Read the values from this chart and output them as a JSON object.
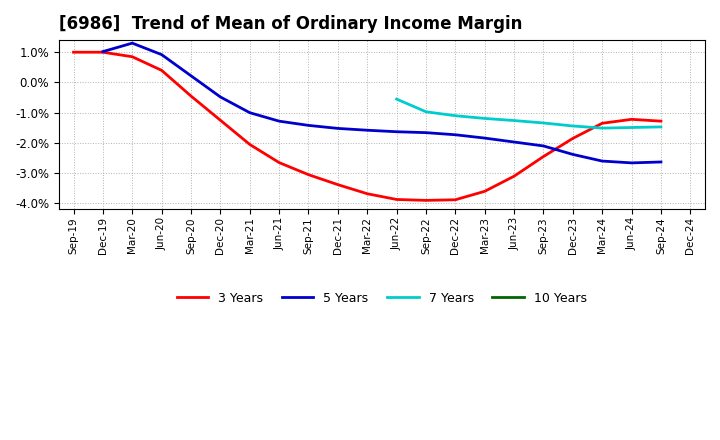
{
  "title": "[6986]  Trend of Mean of Ordinary Income Margin",
  "title_fontsize": 12,
  "background_color": "#ffffff",
  "ylim": [
    -0.042,
    0.014
  ],
  "yticks": [
    -0.04,
    -0.03,
    -0.02,
    -0.01,
    0.0,
    0.01
  ],
  "x_labels": [
    "Sep-19",
    "Dec-19",
    "Mar-20",
    "Jun-20",
    "Sep-20",
    "Dec-20",
    "Mar-21",
    "Jun-21",
    "Sep-21",
    "Dec-21",
    "Mar-22",
    "Jun-22",
    "Sep-22",
    "Dec-22",
    "Mar-23",
    "Jun-23",
    "Sep-23",
    "Dec-23",
    "Mar-24",
    "Jun-24",
    "Sep-24",
    "Dec-24"
  ],
  "series_3y_color": "#ff0000",
  "series_5y_color": "#0000cc",
  "series_7y_color": "#00cccc",
  "series_10y_color": "#006600",
  "series_3y": [
    1.0,
    1.0,
    0.85,
    0.4,
    -0.45,
    -1.25,
    -2.05,
    -2.65,
    -3.05,
    -3.38,
    -3.68,
    -3.87,
    -3.9,
    -3.88,
    -3.6,
    -3.1,
    -2.45,
    -1.85,
    -1.35,
    -1.22,
    -1.28,
    null
  ],
  "series_5y": [
    null,
    1.02,
    1.3,
    0.92,
    0.22,
    -0.48,
    -1.0,
    -1.28,
    -1.42,
    -1.52,
    -1.58,
    -1.63,
    -1.66,
    -1.73,
    -1.84,
    -1.97,
    -2.1,
    -2.38,
    -2.6,
    -2.66,
    -2.63,
    null
  ],
  "series_7y": [
    null,
    null,
    null,
    null,
    null,
    null,
    null,
    null,
    null,
    null,
    null,
    -0.55,
    -0.97,
    -1.1,
    -1.19,
    -1.26,
    -1.34,
    -1.44,
    -1.51,
    -1.49,
    -1.47,
    null
  ],
  "series_10y": [
    null,
    null,
    null,
    null,
    null,
    null,
    null,
    null,
    null,
    null,
    null,
    null,
    null,
    null,
    null,
    null,
    null,
    null,
    null,
    null,
    null,
    null
  ],
  "legend_labels": [
    "3 Years",
    "5 Years",
    "7 Years",
    "10 Years"
  ],
  "line_width": 2.0,
  "grid_color": "#aaaaaa",
  "grid_style": ":"
}
